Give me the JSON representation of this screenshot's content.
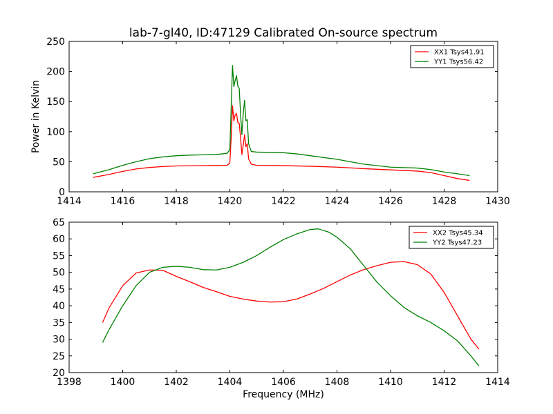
{
  "chart_data": [
    {
      "type": "line",
      "title": "lab-7-gl40, ID:47129 Calibrated On-source spectrum",
      "xlabel": "",
      "ylabel": "Power in Kelvin",
      "xlim": [
        1414,
        1430
      ],
      "ylim": [
        0,
        250
      ],
      "xticks": [
        "1414",
        "1416",
        "1418",
        "1420",
        "1422",
        "1424",
        "1426",
        "1428",
        "1430"
      ],
      "yticks": [
        "0",
        "50",
        "100",
        "150",
        "200",
        "250"
      ],
      "legend_position": "top-right",
      "series": [
        {
          "name": "XX1 Tsys41.91",
          "color": "#ff0000",
          "points": [
            [
              1414.9,
              24
            ],
            [
              1415.5,
              29
            ],
            [
              1416,
              34
            ],
            [
              1416.5,
              38
            ],
            [
              1417,
              40.5
            ],
            [
              1417.5,
              42
            ],
            [
              1418,
              43
            ],
            [
              1418.5,
              43.3
            ],
            [
              1419,
              43.6
            ],
            [
              1419.5,
              43.8
            ],
            [
              1419.9,
              44
            ],
            [
              1420.0,
              48
            ],
            [
              1420.05,
              90
            ],
            [
              1420.1,
              143
            ],
            [
              1420.15,
              118
            ],
            [
              1420.2,
              128
            ],
            [
              1420.25,
              130
            ],
            [
              1420.3,
              115
            ],
            [
              1420.35,
              114
            ],
            [
              1420.4,
              90
            ],
            [
              1420.45,
              62
            ],
            [
              1420.5,
              78
            ],
            [
              1420.55,
              95
            ],
            [
              1420.6,
              75
            ],
            [
              1420.65,
              80
            ],
            [
              1420.7,
              55
            ],
            [
              1420.8,
              46
            ],
            [
              1421,
              44
            ],
            [
              1422,
              43.5
            ],
            [
              1423,
              42.5
            ],
            [
              1424,
              41
            ],
            [
              1425,
              38.5
            ],
            [
              1426,
              36.5
            ],
            [
              1427,
              34.5
            ],
            [
              1427.5,
              32
            ],
            [
              1428,
              27
            ],
            [
              1428.5,
              22
            ],
            [
              1428.95,
              19
            ]
          ]
        },
        {
          "name": "YY1 Tsys56.42",
          "color": "#008000",
          "points": [
            [
              1414.9,
              30
            ],
            [
              1415.5,
              37
            ],
            [
              1416,
              44
            ],
            [
              1416.5,
              50
            ],
            [
              1417,
              55
            ],
            [
              1417.5,
              58
            ],
            [
              1418,
              60
            ],
            [
              1418.5,
              61
            ],
            [
              1419,
              61.5
            ],
            [
              1419.5,
              62
            ],
            [
              1419.9,
              64
            ],
            [
              1420.0,
              70
            ],
            [
              1420.05,
              140
            ],
            [
              1420.1,
              210
            ],
            [
              1420.15,
              175
            ],
            [
              1420.2,
              185
            ],
            [
              1420.25,
              193
            ],
            [
              1420.3,
              175
            ],
            [
              1420.35,
              172
            ],
            [
              1420.4,
              130
            ],
            [
              1420.45,
              95
            ],
            [
              1420.5,
              130
            ],
            [
              1420.55,
              152
            ],
            [
              1420.6,
              118
            ],
            [
              1420.65,
              120
            ],
            [
              1420.7,
              80
            ],
            [
              1420.8,
              67
            ],
            [
              1421,
              66
            ],
            [
              1422,
              65
            ],
            [
              1422.5,
              63
            ],
            [
              1423,
              60
            ],
            [
              1424,
              54
            ],
            [
              1425,
              46
            ],
            [
              1426,
              41
            ],
            [
              1427,
              39.5
            ],
            [
              1427.5,
              37
            ],
            [
              1428,
              33
            ],
            [
              1428.5,
              30
            ],
            [
              1428.95,
              27
            ]
          ]
        }
      ]
    },
    {
      "type": "line",
      "title": "",
      "xlabel": "Frequency (MHz)",
      "ylabel": "",
      "xlim": [
        1398,
        1414
      ],
      "ylim": [
        20,
        65
      ],
      "xticks": [
        "1398",
        "1400",
        "1402",
        "1404",
        "1406",
        "1408",
        "1410",
        "1412",
        "1414"
      ],
      "yticks": [
        "20",
        "25",
        "30",
        "35",
        "40",
        "45",
        "50",
        "55",
        "60",
        "65"
      ],
      "legend_position": "top-right",
      "series": [
        {
          "name": "XX2 Tsys45.34",
          "color": "#ff0000",
          "points": [
            [
              1399.25,
              35
            ],
            [
              1399.5,
              39.5
            ],
            [
              1400,
              46
            ],
            [
              1400.5,
              49.8
            ],
            [
              1401,
              50.7
            ],
            [
              1401.5,
              50.6
            ],
            [
              1402,
              48.8
            ],
            [
              1402.5,
              47.2
            ],
            [
              1403,
              45.5
            ],
            [
              1403.5,
              44.2
            ],
            [
              1404,
              42.8
            ],
            [
              1404.5,
              42
            ],
            [
              1405,
              41.4
            ],
            [
              1405.5,
              41.1
            ],
            [
              1406,
              41.2
            ],
            [
              1406.5,
              42
            ],
            [
              1407,
              43.5
            ],
            [
              1407.5,
              45.2
            ],
            [
              1408,
              47.2
            ],
            [
              1408.5,
              49.2
            ],
            [
              1409,
              50.8
            ],
            [
              1409.5,
              52
            ],
            [
              1410,
              53
            ],
            [
              1410.5,
              53.2
            ],
            [
              1411,
              52.3
            ],
            [
              1411.5,
              49.5
            ],
            [
              1412,
              44
            ],
            [
              1412.5,
              37
            ],
            [
              1413,
              30
            ],
            [
              1413.3,
              27
            ]
          ]
        },
        {
          "name": "YY2 Tsys47.23",
          "color": "#008000",
          "points": [
            [
              1399.25,
              29
            ],
            [
              1399.5,
              33
            ],
            [
              1400,
              40
            ],
            [
              1400.5,
              46
            ],
            [
              1401,
              50
            ],
            [
              1401.5,
              51.5
            ],
            [
              1402,
              51.8
            ],
            [
              1402.5,
              51.5
            ],
            [
              1403,
              50.8
            ],
            [
              1403.5,
              50.7
            ],
            [
              1404,
              51.5
            ],
            [
              1404.5,
              53
            ],
            [
              1405,
              55
            ],
            [
              1405.5,
              57.5
            ],
            [
              1406,
              59.8
            ],
            [
              1406.5,
              61.5
            ],
            [
              1407,
              62.8
            ],
            [
              1407.3,
              63
            ],
            [
              1407.7,
              62
            ],
            [
              1408,
              60.5
            ],
            [
              1408.5,
              57
            ],
            [
              1409,
              52
            ],
            [
              1409.5,
              47
            ],
            [
              1410,
              43
            ],
            [
              1410.5,
              39.5
            ],
            [
              1411,
              37
            ],
            [
              1411.5,
              35
            ],
            [
              1412,
              32.5
            ],
            [
              1412.5,
              29.5
            ],
            [
              1413,
              25
            ],
            [
              1413.3,
              22
            ]
          ]
        }
      ]
    }
  ]
}
